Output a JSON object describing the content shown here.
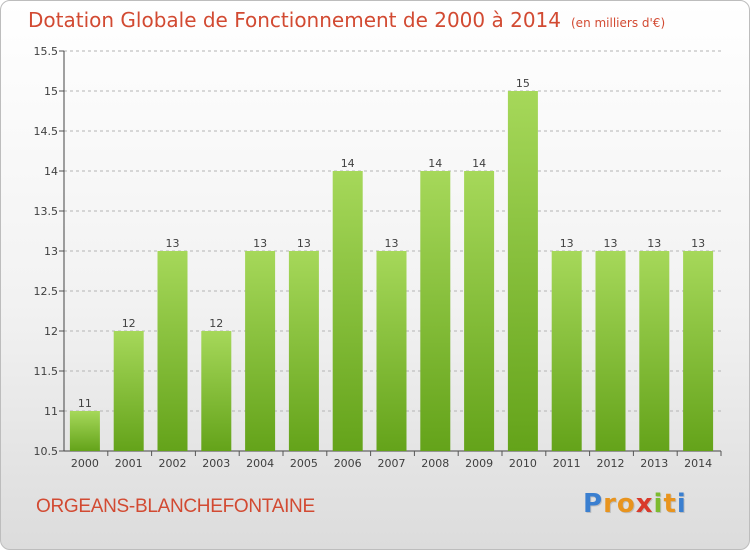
{
  "header": {
    "title": "Dotation Globale de Fonctionnement de 2000 à 2014",
    "unit": "(en milliers d'€)"
  },
  "footer": {
    "commune": "ORGEANS-BLANCHEFONTAINE",
    "logo_text": "Proxiti",
    "logo_letters": [
      {
        "ch": "P",
        "color": "#3a7fd0"
      },
      {
        "ch": "r",
        "color": "#e8941e"
      },
      {
        "ch": "o",
        "color": "#e8941e"
      },
      {
        "ch": "x",
        "color": "#d93a2b"
      },
      {
        "ch": "i",
        "color": "#7cbb2f"
      },
      {
        "ch": "t",
        "color": "#e8941e"
      },
      {
        "ch": "i",
        "color": "#3a7fd0"
      }
    ]
  },
  "colors": {
    "title": "#d24a32",
    "bar_light": "#a6d85a",
    "bar_dark": "#64a31a",
    "grid": "#b4b4b4",
    "label": "#404040"
  },
  "chart_data": {
    "type": "bar",
    "title": "Dotation Globale de Fonctionnement de 2000 à 2014",
    "unit": "(en milliers d'€)",
    "xlabel": "",
    "ylabel": "",
    "categories": [
      "2000",
      "2001",
      "2002",
      "2003",
      "2004",
      "2005",
      "2006",
      "2007",
      "2008",
      "2009",
      "2010",
      "2011",
      "2012",
      "2013",
      "2014"
    ],
    "values": [
      11,
      12,
      13,
      12,
      13,
      13,
      14,
      13,
      14,
      14,
      15,
      13,
      13,
      13,
      13
    ],
    "data_labels": [
      "11",
      "12",
      "13",
      "12",
      "13",
      "13",
      "14",
      "13",
      "14",
      "14",
      "15",
      "13",
      "13",
      "13",
      "13"
    ],
    "yticks": [
      "10.5",
      "11",
      "11.5",
      "12",
      "12.5",
      "13",
      "13.5",
      "14",
      "14.5",
      "15",
      "15.5"
    ],
    "ylim": [
      10.5,
      15.5
    ],
    "grid": true
  }
}
